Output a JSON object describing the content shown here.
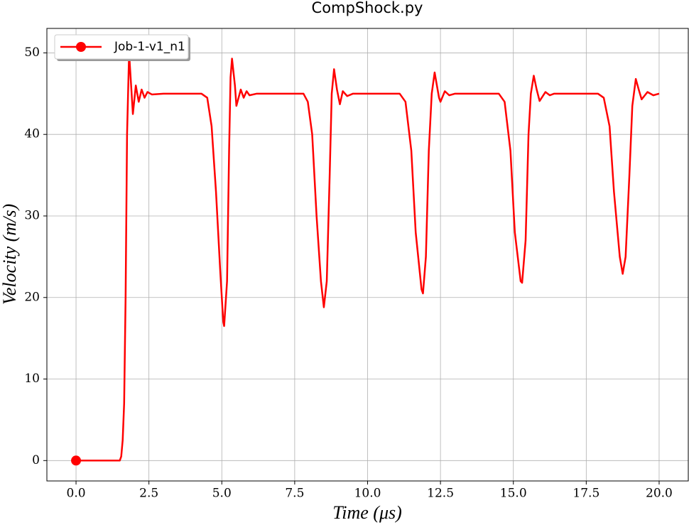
{
  "chart_data": {
    "type": "line",
    "title": "CompShock.py",
    "xlabel": "Time (μs)",
    "ylabel": "Velocity (m/s)",
    "xlim": [
      -1,
      21
    ],
    "ylim": [
      -2.5,
      53
    ],
    "xticks": [
      {
        "value": 0,
        "label": "0.0"
      },
      2.5,
      {
        "value": 5,
        "label": "5.0"
      },
      7.5,
      {
        "value": 10,
        "label": "10.0"
      },
      12.5,
      {
        "value": 15,
        "label": "15.0"
      },
      17.5,
      {
        "value": 20,
        "label": "20.0"
      }
    ],
    "yticks": [
      0,
      10,
      20,
      30,
      40,
      50
    ],
    "grid": true,
    "legend": "upper left",
    "series": [
      {
        "name": "Job-1-v1_n1",
        "color": "#ff0000",
        "x": [
          0,
          1.5,
          1.55,
          1.6,
          1.65,
          1.7,
          1.75,
          1.82,
          1.95,
          2.05,
          2.15,
          2.25,
          2.35,
          2.45,
          2.6,
          3.0,
          4.3,
          4.5,
          4.65,
          4.8,
          4.95,
          5.05,
          5.08,
          5.18,
          5.25,
          5.3,
          5.35,
          5.45,
          5.5,
          5.65,
          5.75,
          5.85,
          5.95,
          6.2,
          7.8,
          7.95,
          8.1,
          8.25,
          8.4,
          8.5,
          8.6,
          8.7,
          8.77,
          8.85,
          8.95,
          9.05,
          9.15,
          9.3,
          9.5,
          11.1,
          11.3,
          11.5,
          11.65,
          11.85,
          11.9,
          12.0,
          12.1,
          12.2,
          12.3,
          12.45,
          12.5,
          12.65,
          12.8,
          13.0,
          14.5,
          14.7,
          14.9,
          15.05,
          15.25,
          15.3,
          15.42,
          15.52,
          15.6,
          15.7,
          15.8,
          15.9,
          16.1,
          16.25,
          16.4,
          17.9,
          18.1,
          18.3,
          18.45,
          18.65,
          18.75,
          18.85,
          18.98,
          19.08,
          19.2,
          19.3,
          19.4,
          19.6,
          19.8,
          20.0
        ],
        "values": [
          0,
          0,
          0.5,
          2.5,
          7,
          20,
          40,
          50,
          42.5,
          46,
          44,
          45.5,
          44.5,
          45.2,
          44.9,
          45,
          45,
          44.5,
          41,
          33,
          23,
          17,
          16.5,
          22,
          38,
          47,
          49.3,
          46,
          43.5,
          45.5,
          44.5,
          45.3,
          44.8,
          45,
          45,
          44,
          40,
          30,
          22,
          18.8,
          22,
          35,
          45,
          48,
          45.5,
          43.7,
          45.3,
          44.7,
          45,
          45,
          44,
          38,
          28,
          21,
          20.5,
          25,
          38,
          45,
          47.6,
          44.5,
          44,
          45.3,
          44.8,
          45,
          45,
          44,
          38,
          28,
          22,
          21.8,
          27,
          40,
          45,
          47.2,
          45.5,
          44.1,
          45.2,
          44.8,
          45,
          45,
          44.5,
          41,
          33,
          25,
          22.9,
          25,
          35,
          43.5,
          46.8,
          45.5,
          44.3,
          45.2,
          44.8,
          45
        ]
      }
    ]
  }
}
